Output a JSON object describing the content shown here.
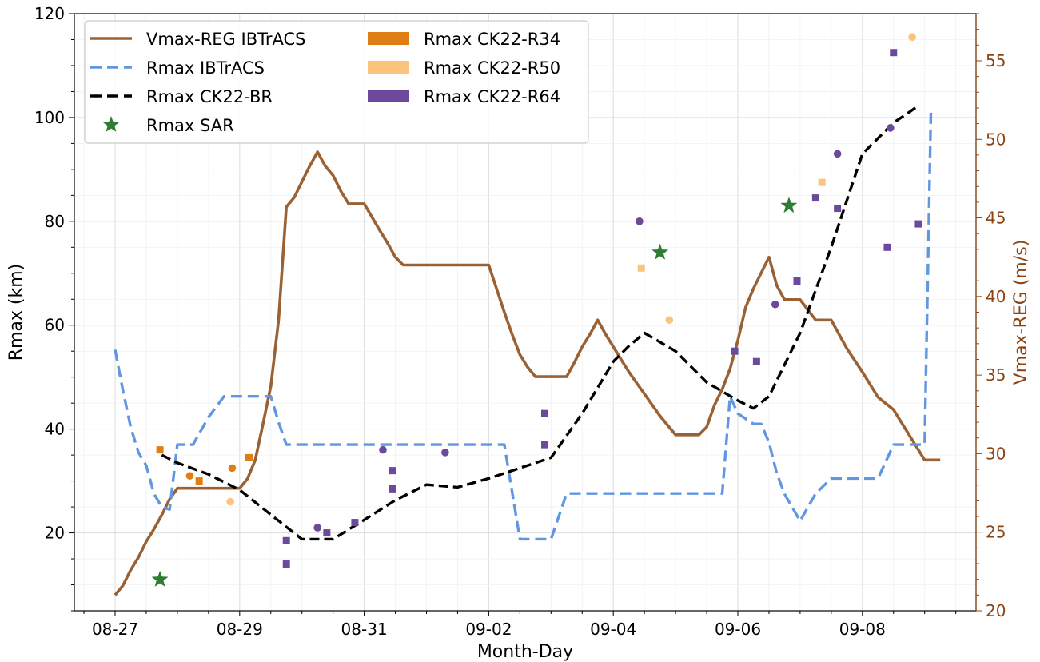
{
  "chart_data": {
    "type": "line",
    "xlabel": "Month-Day",
    "ylabel": "Rmax (km)",
    "y2label": "Vmax-REG (m/s)",
    "x_ticks": [
      "08-27",
      "08-29",
      "08-31",
      "09-02",
      "09-04",
      "09-06",
      "09-08"
    ],
    "y_ticks": [
      "20",
      "40",
      "60",
      "80",
      "100",
      "120"
    ],
    "y2_ticks": [
      "20",
      "25",
      "30",
      "35",
      "40",
      "45",
      "50",
      "55"
    ],
    "xlim_days": [
      -0.65,
      13.78
    ],
    "ylim": [
      5,
      120
    ],
    "y2lim": [
      20,
      58
    ],
    "grid": true,
    "legend_position": "top-left",
    "x_units": "days from 08-27",
    "colors": {
      "vmax": "#9a6234",
      "rmax_ibtracs": "#6196e2",
      "ck22_br": "#000000",
      "sar": "#2e7d32",
      "r34": "#e07e16",
      "r50": "#fbc37b",
      "r64": "#6b4a9e",
      "y2axis": "#8b4513"
    },
    "legend": [
      {
        "label": "Vmax-REG IBTrACS",
        "kind": "line",
        "key": "vmax"
      },
      {
        "label": "Rmax IBTrACS",
        "kind": "dash",
        "key": "rmax_ibtracs"
      },
      {
        "label": "Rmax CK22-BR",
        "kind": "dash",
        "key": "ck22_br"
      },
      {
        "label": "Rmax SAR",
        "kind": "star",
        "key": "sar"
      },
      {
        "label": "Rmax CK22-R34",
        "kind": "patch",
        "key": "r34"
      },
      {
        "label": "Rmax CK22-R50",
        "kind": "patch",
        "key": "r50"
      },
      {
        "label": "Rmax CK22-R64",
        "kind": "patch",
        "key": "r64"
      }
    ],
    "series": [
      {
        "name": "Vmax-REG IBTrACS",
        "axis": "right",
        "x": [
          0,
          0.125,
          0.25,
          0.375,
          0.5,
          0.625,
          0.75,
          0.875,
          1,
          1.25,
          1.5,
          1.75,
          2,
          2.125,
          2.25,
          2.375,
          2.5,
          2.625,
          2.75,
          2.875,
          3,
          3.125,
          3.25,
          3.375,
          3.5,
          3.625,
          3.75,
          3.875,
          4,
          4.25,
          4.375,
          4.5,
          4.625,
          4.75,
          5,
          5.25,
          5.5,
          5.75,
          6,
          6.25,
          6.375,
          6.5,
          6.625,
          6.75,
          7,
          7.25,
          7.375,
          7.5,
          7.625,
          7.75,
          7.875,
          8,
          8.125,
          8.25,
          8.375,
          8.5,
          8.75,
          9,
          9.125,
          9.25,
          9.375,
          9.5,
          9.625,
          9.75,
          9.875,
          10,
          10.125,
          10.25,
          10.5,
          10.625,
          10.75,
          10.875,
          11,
          11.25,
          11.375,
          11.5,
          11.75,
          12,
          12.25,
          12.5,
          12.75,
          13,
          13.25
        ],
        "y": [
          21.0,
          21.6,
          22.6,
          23.4,
          24.4,
          25.2,
          26.1,
          27.1,
          27.8,
          27.8,
          27.8,
          27.8,
          27.8,
          28.4,
          29.6,
          31.9,
          34.3,
          38.5,
          45.7,
          46.3,
          47.3,
          48.3,
          49.2,
          48.3,
          47.7,
          46.7,
          45.9,
          45.9,
          45.9,
          44.2,
          43.4,
          42.5,
          42.0,
          42.0,
          42.0,
          42.0,
          42.0,
          42.0,
          42.0,
          39.0,
          37.6,
          36.3,
          35.5,
          34.9,
          34.9,
          34.9,
          35.8,
          36.8,
          37.6,
          38.5,
          37.6,
          36.8,
          36.0,
          35.2,
          34.5,
          33.8,
          32.4,
          31.2,
          31.2,
          31.2,
          31.2,
          31.7,
          33.1,
          34.1,
          35.4,
          37.2,
          39.3,
          40.5,
          42.5,
          40.7,
          39.8,
          39.8,
          39.8,
          38.5,
          38.5,
          38.5,
          36.7,
          35.2,
          33.6,
          32.8,
          31.2,
          29.6,
          29.6
        ]
      },
      {
        "name": "Rmax IBTrACS",
        "axis": "left",
        "x": [
          0,
          0.125,
          0.25,
          0.375,
          0.5,
          0.625,
          0.75,
          0.875,
          1,
          1.125,
          1.25,
          1.5,
          1.75,
          2,
          2.25,
          2.5,
          2.625,
          2.75,
          3,
          4,
          5,
          6,
          6.25,
          6.5,
          6.75,
          7,
          7.25,
          7.5,
          8,
          9,
          9.75,
          9.875,
          10,
          10.25,
          10.375,
          10.5,
          10.625,
          10.75,
          11,
          11.25,
          11.5,
          12,
          12.25,
          12.5,
          12.75,
          13,
          13.1
        ],
        "y": [
          55.3,
          47.5,
          40.4,
          35.5,
          33.0,
          27.5,
          25.0,
          24.5,
          37.0,
          37.0,
          37.0,
          42.3,
          46.3,
          46.3,
          46.3,
          46.3,
          41.3,
          37.0,
          37.0,
          37.0,
          37.0,
          37.0,
          37.0,
          18.8,
          18.8,
          18.8,
          27.6,
          27.6,
          27.6,
          27.6,
          27.6,
          46.3,
          43.0,
          41.0,
          41.0,
          37.4,
          31.5,
          27.5,
          22.3,
          27.6,
          30.5,
          30.5,
          30.5,
          37.0,
          37.0,
          37.0,
          101.0
        ]
      },
      {
        "name": "Rmax CK22-BR",
        "axis": "left",
        "x": [
          0.75,
          1,
          1.5,
          2,
          2.5,
          3,
          3.5,
          4,
          4.5,
          5,
          5.5,
          6,
          6.5,
          7,
          7.5,
          8,
          8.25,
          8.5,
          9,
          9.5,
          10,
          10.25,
          10.5,
          11,
          11.5,
          12,
          12.5,
          12.75,
          12.9
        ],
        "y": [
          35.0,
          33.5,
          31.3,
          28.3,
          23.5,
          18.8,
          18.8,
          22.5,
          26.3,
          29.3,
          28.8,
          30.5,
          32.5,
          34.5,
          43.0,
          53.0,
          56.0,
          58.5,
          55.0,
          49.0,
          45.5,
          44.0,
          46.3,
          58.5,
          75.0,
          93.0,
          99.0,
          101.0,
          102.3
        ]
      }
    ],
    "scatter": {
      "sar": [
        [
          0.72,
          11
        ],
        [
          8.75,
          74
        ],
        [
          10.82,
          83
        ]
      ],
      "r34": [
        [
          0.72,
          36
        ],
        [
          1.2,
          31
        ],
        [
          1.35,
          30
        ],
        [
          1.88,
          32.5
        ],
        [
          2.15,
          34.5
        ]
      ],
      "r50": [
        [
          1.85,
          26
        ],
        [
          8.45,
          71
        ],
        [
          8.9,
          61
        ],
        [
          11.35,
          87.5
        ],
        [
          12.8,
          115.5
        ]
      ],
      "r64": [
        [
          2.75,
          18.5
        ],
        [
          2.75,
          14
        ],
        [
          3.25,
          21
        ],
        [
          3.4,
          20
        ],
        [
          3.85,
          22
        ],
        [
          4.3,
          36
        ],
        [
          4.45,
          32
        ],
        [
          4.45,
          28.5
        ],
        [
          5.3,
          35.5
        ],
        [
          6.9,
          43
        ],
        [
          6.9,
          37
        ],
        [
          8.42,
          80
        ],
        [
          9.95,
          55
        ],
        [
          10.3,
          53
        ],
        [
          10.6,
          64
        ],
        [
          10.95,
          68.5
        ],
        [
          11.25,
          84.5
        ],
        [
          11.6,
          93
        ],
        [
          11.6,
          82.5
        ],
        [
          12.4,
          75
        ],
        [
          12.45,
          98
        ],
        [
          12.5,
          112.5
        ],
        [
          12.9,
          79.5
        ]
      ]
    }
  }
}
